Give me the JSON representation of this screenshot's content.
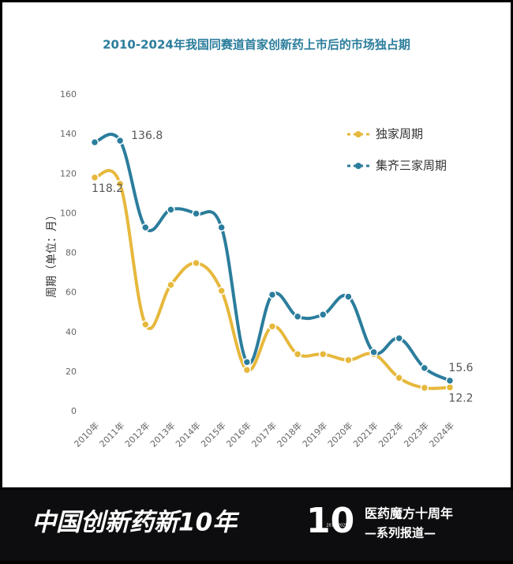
{
  "chart_data": {
    "type": "line",
    "title": "2010-2024年我国同赛道首家创新药上市后的市场独占期",
    "y_label": "周期（单位：月）",
    "categories": [
      "2010年",
      "2011年",
      "2012年",
      "2013年",
      "2014年",
      "2015年",
      "2016年",
      "2017年",
      "2018年",
      "2019年",
      "2020年",
      "2021年",
      "2022年",
      "2023年",
      "2024年"
    ],
    "series": [
      {
        "name": "独家周期",
        "color": "#e6b83c",
        "values": [
          118.2,
          115,
          44,
          64,
          75,
          61,
          21,
          43,
          29,
          29,
          26,
          29,
          17,
          12,
          12.2
        ]
      },
      {
        "name": "集齐三家周期",
        "color": "#2b7d9c",
        "values": [
          136,
          136.8,
          93,
          102,
          100,
          93,
          25,
          59,
          48,
          49,
          58,
          30,
          37,
          22,
          15.6
        ]
      }
    ],
    "ylim": [
      0,
      160
    ],
    "yticks": [
      0,
      20,
      40,
      60,
      80,
      100,
      120,
      140,
      160
    ],
    "grid": false,
    "legend": "top-right"
  },
  "banner": {
    "headline": "中国创新药新10年",
    "logo_number": "10",
    "logo_years": "2015-2025",
    "brand": "医药魔方十周年",
    "series_tag": "—系列报道—"
  }
}
